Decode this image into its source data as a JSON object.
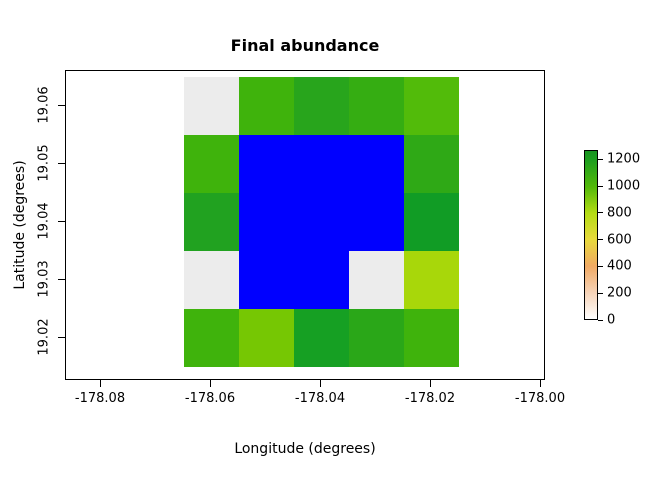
{
  "title": "Final abundance",
  "axes": {
    "x_label": "Longitude (degrees)",
    "y_label": "Latitude (degrees)",
    "x_ticks": [
      "-178.08",
      "-178.06",
      "-178.04",
      "-178.02",
      "-178.00"
    ],
    "y_ticks": [
      "19.02",
      "19.03",
      "19.04",
      "19.05",
      "19.06"
    ]
  },
  "chart_data": {
    "type": "heatmap",
    "title": "Final abundance",
    "xlabel": "Longitude (degrees)",
    "ylabel": "Latitude (degrees)",
    "x": [
      -178.06,
      -178.05,
      -178.04,
      -178.03,
      -178.02
    ],
    "y": [
      19.06,
      19.05,
      19.04,
      19.03,
      19.02
    ],
    "cell_width_deg": 0.01,
    "cell_height_deg": 0.01,
    "xlim": [
      -178.087,
      -177.999
    ],
    "ylim": [
      19.012,
      19.066
    ],
    "values": [
      [
        30,
        1050,
        1100,
        1080,
        1000
      ],
      [
        1050,
        null,
        null,
        null,
        1100
      ],
      [
        1150,
        null,
        null,
        null,
        1200
      ],
      [
        30,
        null,
        null,
        30,
        820
      ],
      [
        1050,
        950,
        1180,
        1120,
        1050
      ]
    ],
    "colors": [
      [
        "#ececec",
        "#3fb30c",
        "#28a51c",
        "#35ad12",
        "#52bb0a"
      ],
      [
        "#3fb30c",
        "#0000ff",
        "#0000ff",
        "#0000ff",
        "#2fa916"
      ],
      [
        "#21a220",
        "#0000ff",
        "#0000ff",
        "#0000ff",
        "#119c25"
      ],
      [
        "#ececec",
        "#0000ff",
        "#0000ff",
        "#ececec",
        "#a8d70a"
      ],
      [
        "#3fb30c",
        "#76c703",
        "#16a023",
        "#2aa718",
        "#3fb30c"
      ]
    ],
    "overflow_color": "#0000ff",
    "legend": {
      "position": "right",
      "ticks": [
        "1200",
        "1000",
        "800",
        "600",
        "400",
        "200",
        "0"
      ],
      "tick_values": [
        1200,
        1000,
        800,
        600,
        400,
        200,
        0
      ],
      "range": [
        0,
        1270
      ],
      "stops": [
        {
          "value": 0,
          "color": "#ffffff"
        },
        {
          "value": 200,
          "color": "#f6d3b8"
        },
        {
          "value": 400,
          "color": "#f0a963"
        },
        {
          "value": 600,
          "color": "#e8da3c"
        },
        {
          "value": 800,
          "color": "#b4dc14"
        },
        {
          "value": 1000,
          "color": "#52b90a"
        },
        {
          "value": 1200,
          "color": "#1d9e1e"
        },
        {
          "value": 1270,
          "color": "#179321"
        }
      ]
    }
  }
}
